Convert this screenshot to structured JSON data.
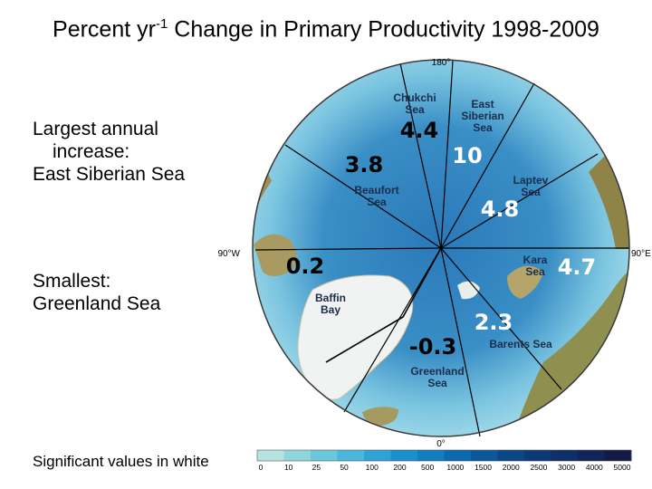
{
  "title": {
    "prefix": "Percent yr",
    "sup": "-1",
    "suffix": " Change in Primary Productivity 1998-2009"
  },
  "side_notes": {
    "largest_line1": "Largest annual",
    "largest_line2": "increase:",
    "largest_line3": "East Siberian Sea",
    "smallest_line1": "Smallest:",
    "smallest_line2": "Greenland Sea",
    "significance_note": "Significant values in white"
  },
  "longitude_labels": {
    "top": "180°",
    "left": "90°W",
    "right": "90°E",
    "bottom": "0°"
  },
  "regions": [
    {
      "name_line1": "Chukchi",
      "name_line2": "Sea",
      "value": "4.4",
      "significant": false
    },
    {
      "name_line1": "East",
      "name_line2": "Siberian",
      "name_line3": "Sea",
      "value": "10",
      "significant": true
    },
    {
      "name_line1": "Laptev",
      "name_line2": "Sea",
      "value": "4.8",
      "significant": true
    },
    {
      "name_line1": "Kara",
      "name_line2": "Sea",
      "value": "4.7",
      "significant": true
    },
    {
      "name_line1": "Barents Sea",
      "value": "2.3",
      "significant": true
    },
    {
      "name_line1": "Greenland",
      "name_line2": "Sea",
      "value": "-0.3",
      "significant": false
    },
    {
      "name_line1": "Baffin",
      "name_line2": "Bay",
      "value": "0.2",
      "significant": false
    },
    {
      "name_line1": "Beaufort",
      "name_line2": "Sea",
      "value": "3.8",
      "significant": false
    }
  ],
  "colorbar": {
    "ticks": [
      "0",
      "10",
      "25",
      "50",
      "100",
      "200",
      "500",
      "1000",
      "1500",
      "2000",
      "2500",
      "3000",
      "4000",
      "5000"
    ],
    "colors": [
      "#b4e3e0",
      "#8fd6dc",
      "#6dc7dc",
      "#4cb6dc",
      "#2fa3d6",
      "#1a90cd",
      "#117ec0",
      "#0b6aae",
      "#0a5898",
      "#0b4786",
      "#0c3a76",
      "#0e2f68",
      "#112559",
      "#141a47"
    ]
  },
  "map_colors": {
    "ocean_deep": "#1f6fb5",
    "ocean_shelf": "#8fd3e6",
    "land": "#9a8a4c",
    "ice": "#f2f5f5",
    "significant": "#ffffff",
    "not_significant": "#000000"
  }
}
